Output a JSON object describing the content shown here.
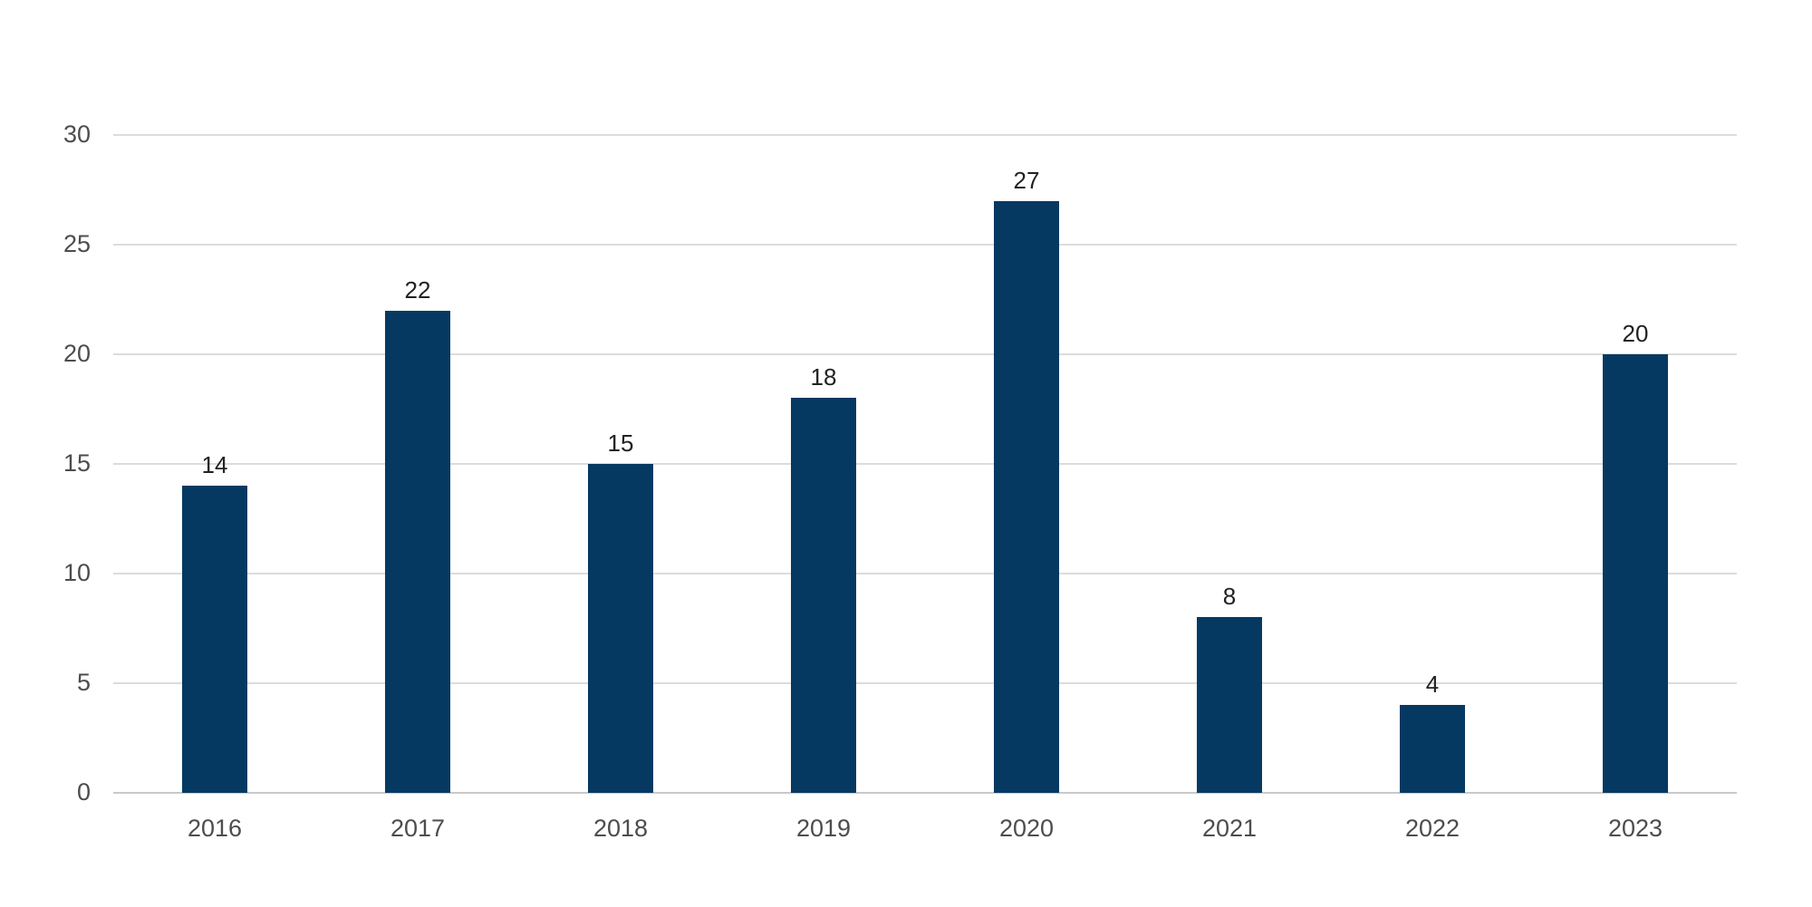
{
  "chart_data": {
    "type": "bar",
    "title": "",
    "xlabel": "",
    "ylabel": "",
    "categories": [
      "2016",
      "2017",
      "2018",
      "2019",
      "2020",
      "2021",
      "2022",
      "2023"
    ],
    "values": [
      14,
      22,
      15,
      18,
      27,
      8,
      4,
      20
    ],
    "value_labels": [
      "14",
      "22",
      "15",
      "18",
      "27",
      "8",
      "4",
      "20"
    ],
    "ylim": [
      0,
      30
    ],
    "yticks": [
      0,
      5,
      10,
      15,
      20,
      25,
      30
    ],
    "ytick_labels": [
      "0",
      "5",
      "10",
      "15",
      "20",
      "25",
      "30"
    ],
    "grid": true,
    "legend": false,
    "colors": {
      "bar": "#053962",
      "gridline": "#dcdcdc",
      "axis_line": "#c9c9c9",
      "tick_text": "#4d4d4d",
      "value_text": "#222222",
      "background": "#ffffff"
    }
  }
}
